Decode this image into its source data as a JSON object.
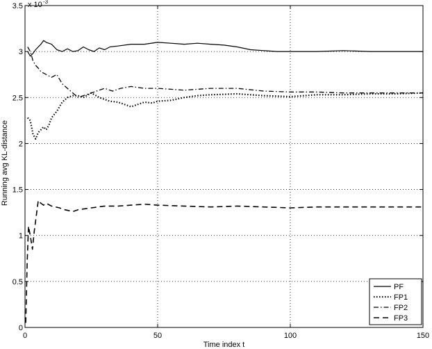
{
  "chart_data": {
    "type": "line",
    "title": "",
    "xlabel": "Time index t",
    "ylabel": "Running avg KL-distance",
    "y_multiplier_label": "x 10",
    "y_multiplier_exponent": "-3",
    "xlim": [
      0,
      150
    ],
    "ylim": [
      0,
      3.5
    ],
    "x_ticks": [
      0,
      50,
      100,
      150
    ],
    "x_tick_labels": [
      "0",
      "50",
      "100",
      "150"
    ],
    "y_ticks": [
      0,
      0.5,
      1,
      1.5,
      2,
      2.5,
      3,
      3.5
    ],
    "y_tick_labels": [
      "0",
      "0.5",
      "1",
      "1.5",
      "2",
      "2.5",
      "3",
      "3.5"
    ],
    "grid": true,
    "legend_position": "bottom-right",
    "series": [
      {
        "name": "PF",
        "style": "solid",
        "x": [
          1,
          2,
          3,
          4,
          5,
          6,
          7,
          8,
          10,
          12,
          14,
          16,
          18,
          20,
          22,
          24,
          26,
          28,
          30,
          32,
          35,
          40,
          45,
          50,
          55,
          60,
          65,
          70,
          75,
          80,
          85,
          90,
          95,
          100,
          110,
          120,
          130,
          140,
          150
        ],
        "y": [
          3.0,
          2.95,
          2.98,
          3.02,
          3.05,
          3.08,
          3.12,
          3.1,
          3.08,
          3.02,
          3.0,
          3.03,
          3.0,
          3.01,
          3.05,
          3.02,
          3.0,
          3.04,
          3.02,
          3.05,
          3.06,
          3.08,
          3.08,
          3.1,
          3.09,
          3.08,
          3.09,
          3.08,
          3.07,
          3.05,
          3.02,
          3.01,
          3.0,
          3.0,
          3.0,
          3.01,
          3.0,
          3.0,
          3.0
        ]
      },
      {
        "name": "FP1",
        "style": "dotted",
        "x": [
          1,
          2,
          3,
          4,
          5,
          6,
          7,
          8,
          9,
          10,
          12,
          14,
          16,
          18,
          20,
          22,
          25,
          28,
          30,
          32,
          35,
          38,
          40,
          42,
          45,
          48,
          50,
          55,
          60,
          65,
          70,
          80,
          90,
          100,
          110,
          120,
          130,
          140,
          150
        ],
        "y": [
          2.28,
          2.25,
          2.1,
          2.05,
          2.12,
          2.15,
          2.18,
          2.15,
          2.2,
          2.28,
          2.35,
          2.45,
          2.5,
          2.52,
          2.52,
          2.5,
          2.55,
          2.5,
          2.48,
          2.46,
          2.45,
          2.42,
          2.4,
          2.42,
          2.45,
          2.44,
          2.46,
          2.47,
          2.5,
          2.52,
          2.53,
          2.54,
          2.52,
          2.51,
          2.53,
          2.53,
          2.54,
          2.54,
          2.55
        ]
      },
      {
        "name": "FP2",
        "style": "dash-dot",
        "x": [
          1,
          2,
          3,
          4,
          5,
          6,
          8,
          10,
          12,
          14,
          16,
          18,
          20,
          22,
          25,
          28,
          30,
          33,
          36,
          40,
          45,
          50,
          60,
          70,
          80,
          90,
          100,
          110,
          120,
          130,
          140,
          150
        ],
        "y": [
          3.05,
          3.0,
          2.9,
          2.85,
          2.82,
          2.78,
          2.75,
          2.72,
          2.75,
          2.65,
          2.6,
          2.55,
          2.5,
          2.52,
          2.55,
          2.58,
          2.6,
          2.57,
          2.6,
          2.62,
          2.6,
          2.6,
          2.58,
          2.6,
          2.6,
          2.57,
          2.56,
          2.56,
          2.55,
          2.55,
          2.55,
          2.55
        ]
      },
      {
        "name": "FP3",
        "style": "dashed",
        "x": [
          0.3,
          0.8,
          1.3,
          2,
          2.8,
          3.5,
          4.2,
          5,
          6,
          7,
          8,
          10,
          13,
          15,
          18,
          20,
          25,
          30,
          35,
          40,
          45,
          50,
          60,
          70,
          80,
          90,
          100,
          110,
          120,
          130,
          140,
          150
        ],
        "y": [
          0.05,
          0.7,
          1.1,
          1.0,
          0.85,
          1.05,
          1.2,
          1.38,
          1.35,
          1.33,
          1.35,
          1.32,
          1.3,
          1.28,
          1.26,
          1.28,
          1.3,
          1.32,
          1.32,
          1.33,
          1.34,
          1.33,
          1.32,
          1.31,
          1.32,
          1.31,
          1.3,
          1.31,
          1.31,
          1.31,
          1.31,
          1.31
        ]
      }
    ]
  }
}
